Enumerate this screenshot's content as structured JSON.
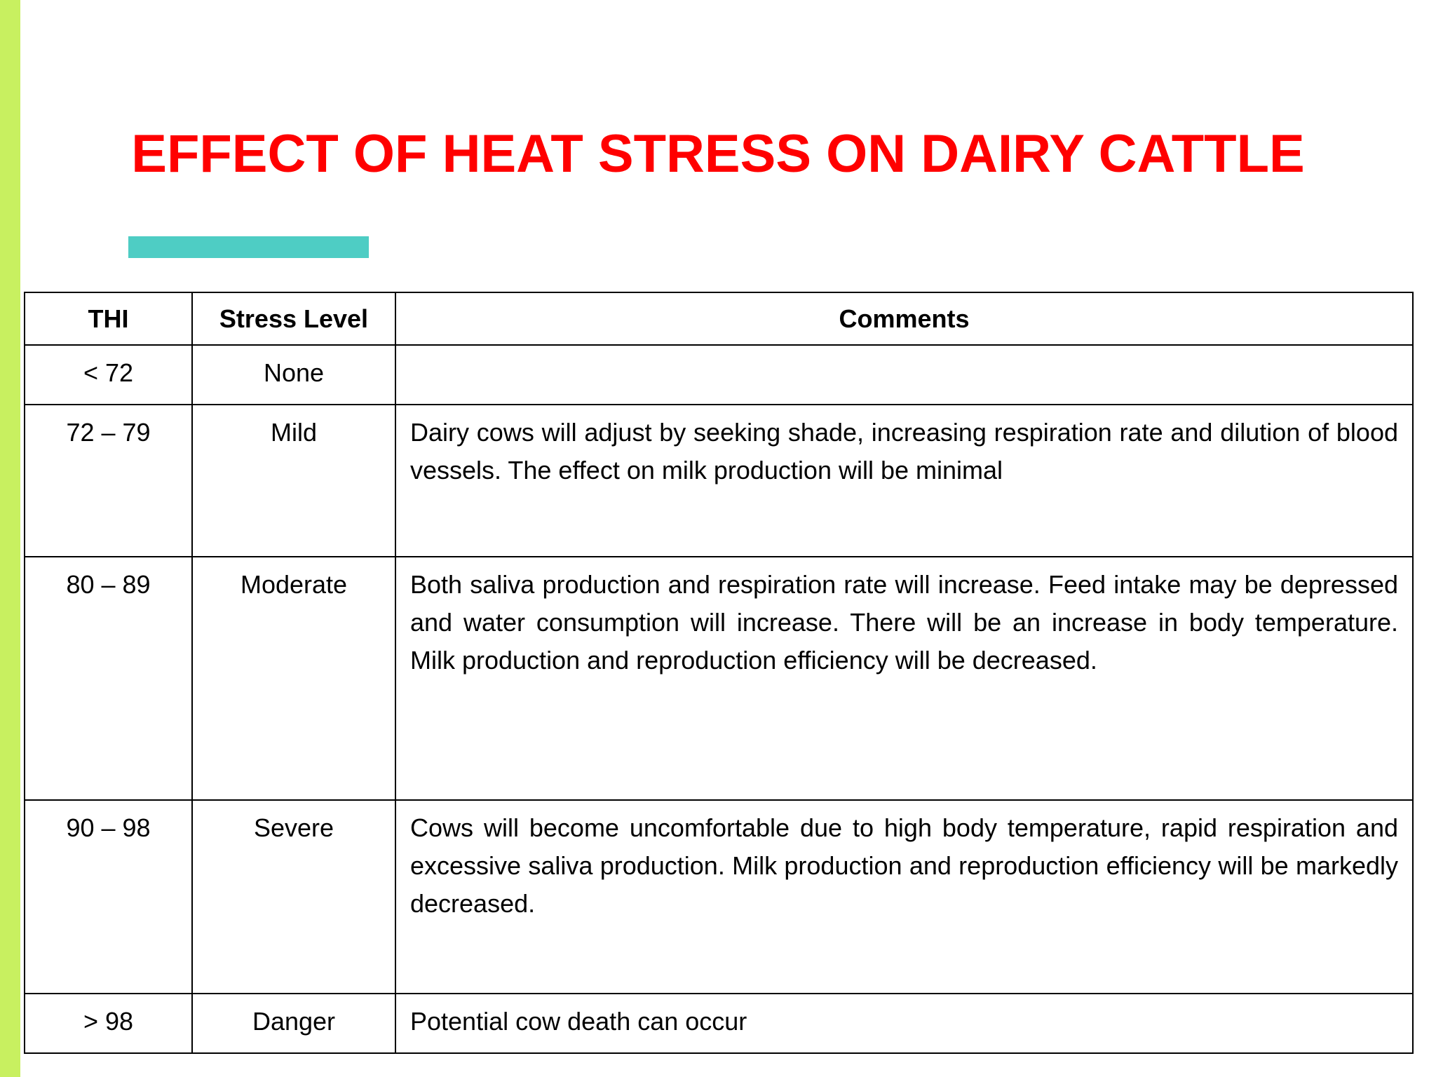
{
  "title": "EFFECT OF HEAT STRESS ON DAIRY CATTLE",
  "table": {
    "header": [
      "THI",
      "Stress Level",
      "Comments"
    ],
    "rows": [
      [
        "< 72",
        "None"
      ],
      [
        "72 – 79",
        "Mild",
        "Dairy cows will adjust by seeking shade, increasing respiration rate and dilution of blood vessels. The effect on milk production will be minimal"
      ],
      [
        "80 – 89",
        "Moderate",
        "Both saliva production and respiration rate will increase. Feed intake may be depressed and water consumption will increase. There will be an increase in body temperature. Milk production and reproduction efficiency will be decreased."
      ],
      [
        "90 – 98",
        "Severe",
        "Cows will become uncomfortable due to high body temperature, rapid respiration and excessive saliva production. Milk production and reproduction efficiency will be markedly decreased."
      ],
      [
        "> 98",
        "Danger",
        "Potential cow death can occur"
      ]
    ]
  }
}
